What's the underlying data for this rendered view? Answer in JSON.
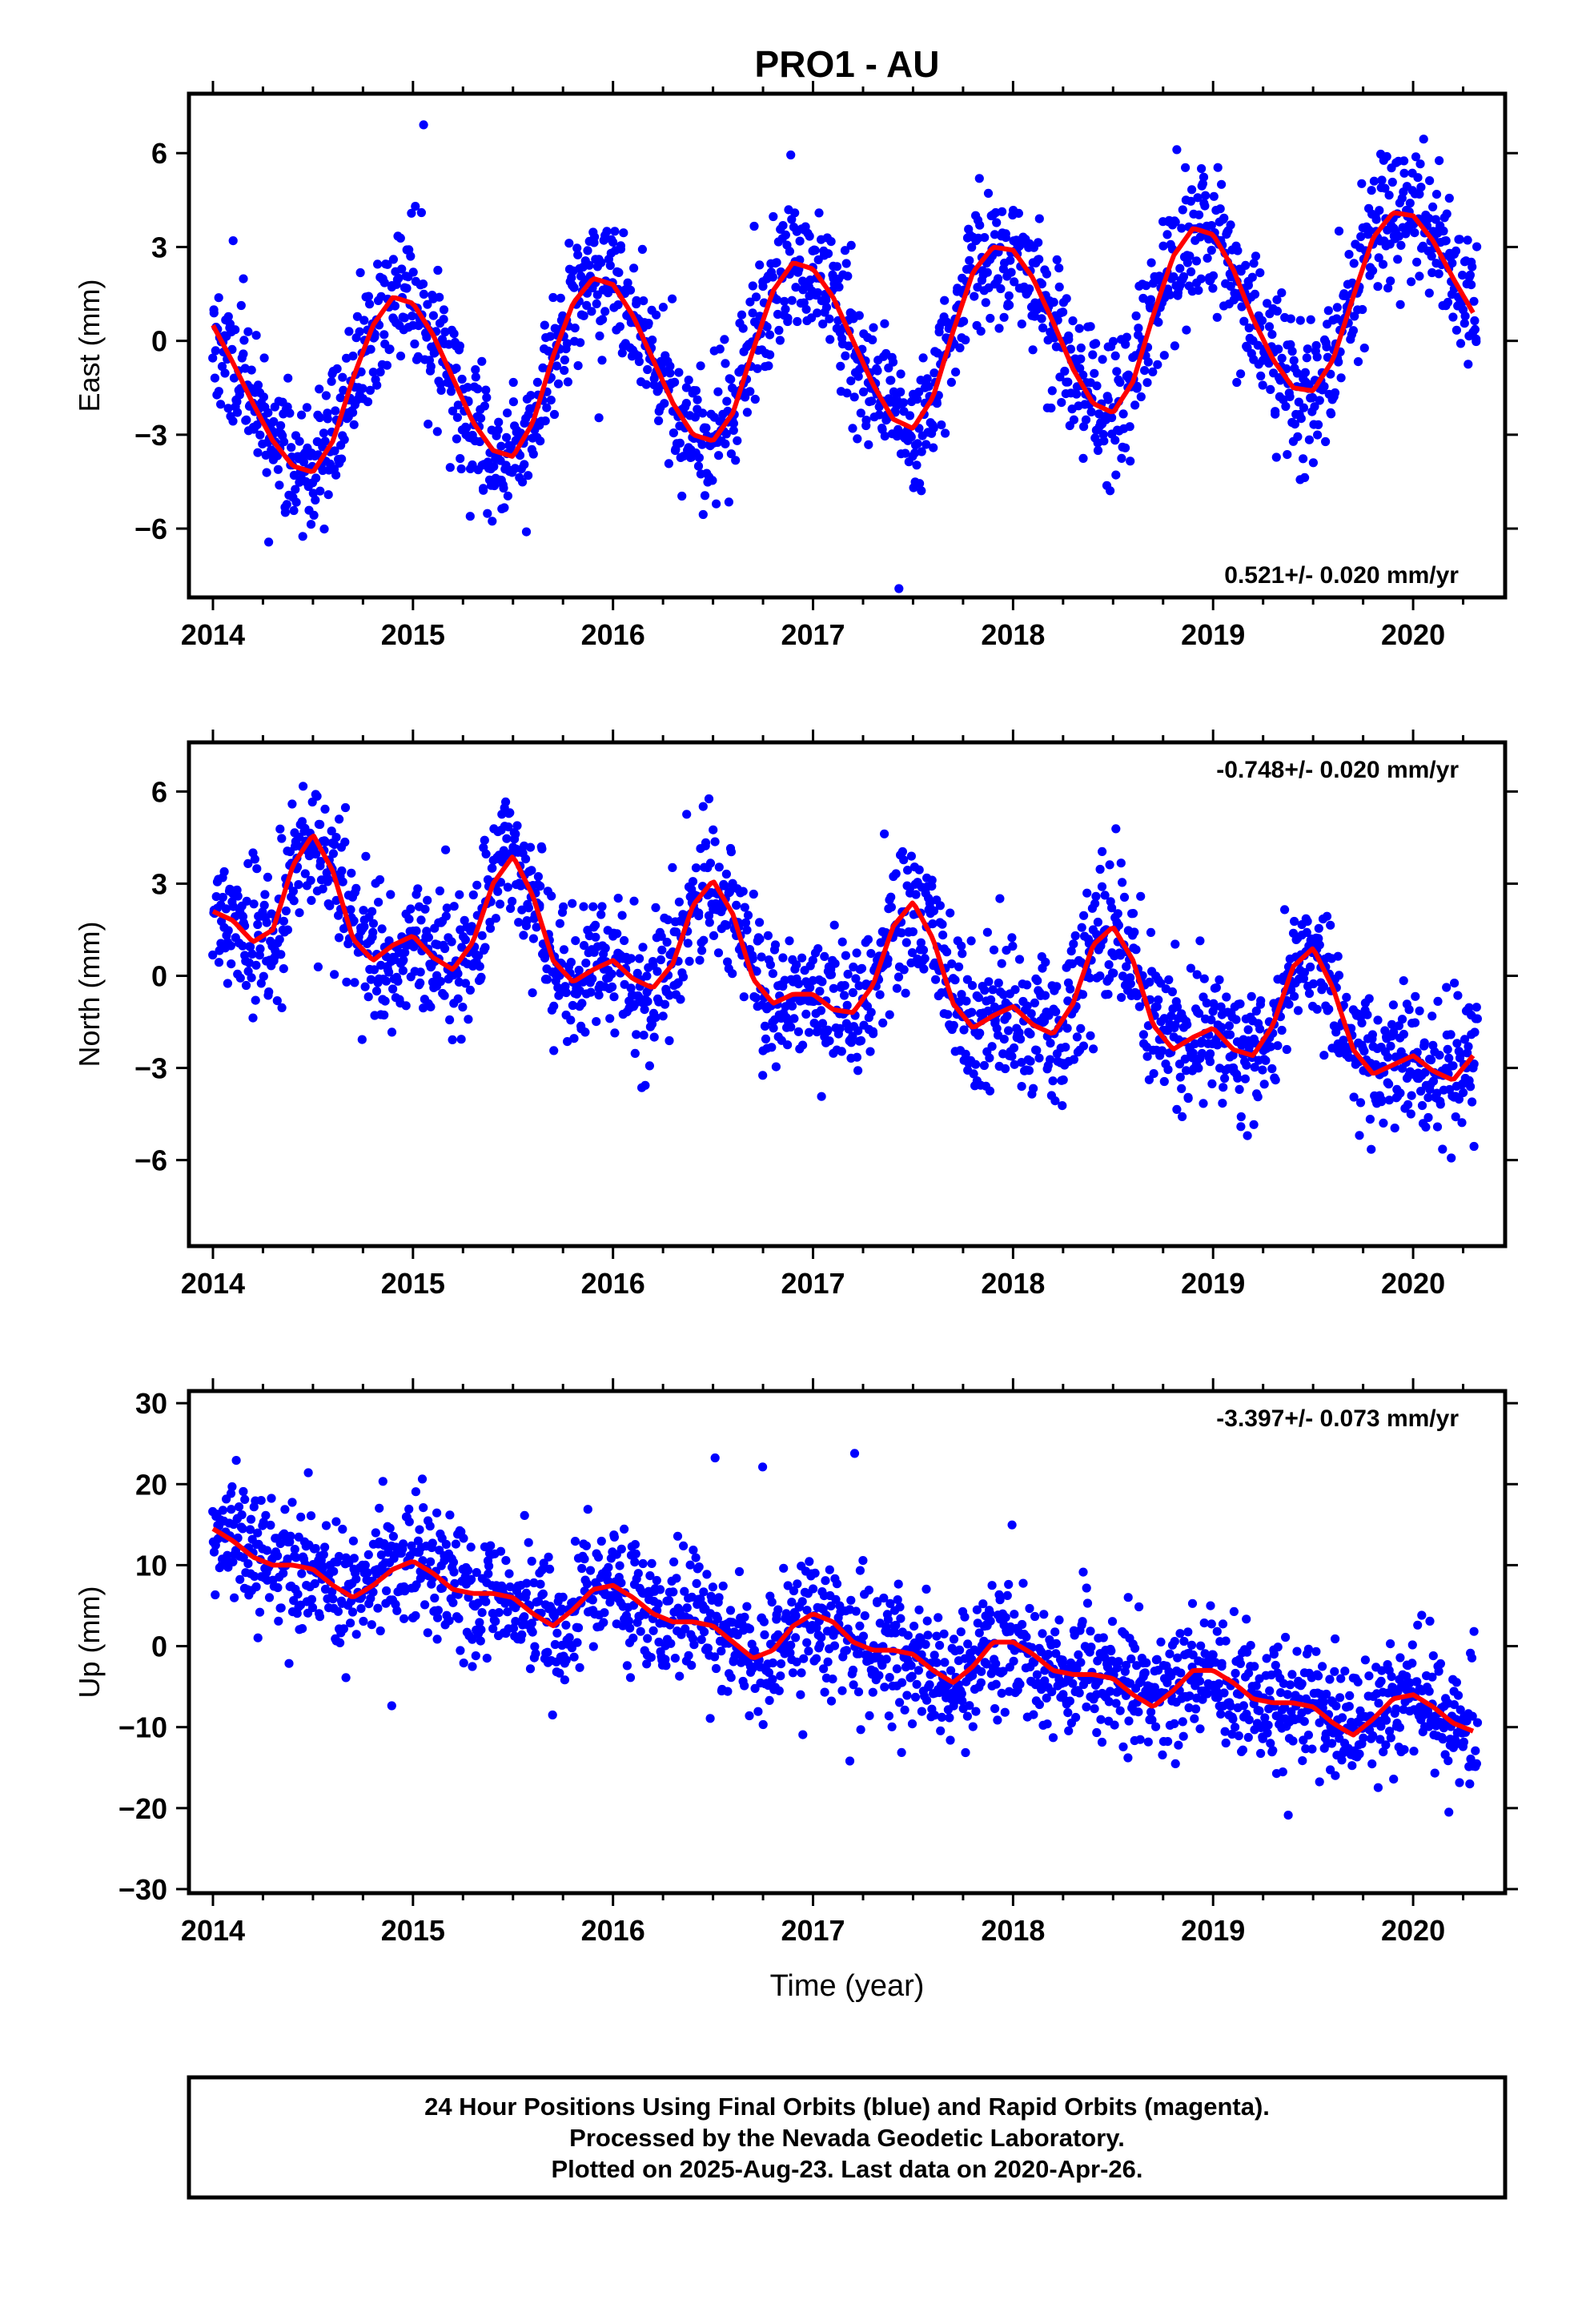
{
  "title": "PRO1 - AU",
  "xlabel": "Time (year)",
  "caption": {
    "line1": "24 Hour Positions Using Final Orbits (blue) and Rapid Orbits (magenta).",
    "line2": "Processed by the Nevada Geodetic Laboratory.",
    "line3": "Plotted on 2025-Aug-23. Last data on 2020-Apr-26."
  },
  "colors": {
    "points": "#0000ff",
    "fit": "#ff0000",
    "axes": "#000000",
    "background": "#ffffff"
  },
  "chart_data": [
    {
      "type": "scatter",
      "component": "east",
      "ylabel": "East (mm)",
      "rate_text": "0.521+/- 0.020 mm/yr",
      "rate_position": "bottom-right",
      "xlim": [
        2013.88,
        2020.46
      ],
      "ylim": [
        -8.2,
        7.9
      ],
      "x_ticks": [
        2014,
        2015,
        2016,
        2017,
        2018,
        2019,
        2020
      ],
      "y_ticks": [
        -6,
        -3,
        0,
        3,
        6
      ],
      "y_tick_labels": [
        "−6",
        "−3",
        "0",
        "3",
        "6"
      ],
      "grid": false,
      "series": [
        {
          "role": "fit",
          "x": [
            2014.0,
            2014.1,
            2014.2,
            2014.3,
            2014.4,
            2014.5,
            2014.6,
            2014.7,
            2014.8,
            2014.9,
            2015.0,
            2015.1,
            2015.2,
            2015.3,
            2015.4,
            2015.5,
            2015.6,
            2015.7,
            2015.8,
            2015.9,
            2016.0,
            2016.1,
            2016.2,
            2016.3,
            2016.4,
            2016.5,
            2016.6,
            2016.7,
            2016.8,
            2016.9,
            2017.0,
            2017.1,
            2017.2,
            2017.3,
            2017.4,
            2017.5,
            2017.6,
            2017.7,
            2017.8,
            2017.9,
            2018.0,
            2018.1,
            2018.2,
            2018.3,
            2018.4,
            2018.5,
            2018.6,
            2018.7,
            2018.8,
            2018.9,
            2019.0,
            2019.1,
            2019.2,
            2019.3,
            2019.4,
            2019.5,
            2019.6,
            2019.7,
            2019.8,
            2019.9,
            2020.0,
            2020.1,
            2020.2,
            2020.3
          ],
          "y": [
            0.5,
            -0.7,
            -2.0,
            -3.2,
            -4.0,
            -4.2,
            -3.2,
            -1.2,
            0.5,
            1.4,
            1.2,
            0.2,
            -1.2,
            -2.6,
            -3.5,
            -3.7,
            -2.6,
            -0.5,
            1.2,
            2.0,
            1.8,
            0.8,
            -0.6,
            -2.0,
            -3.0,
            -3.2,
            -2.3,
            -0.3,
            1.6,
            2.5,
            2.3,
            1.4,
            0.0,
            -1.4,
            -2.5,
            -2.8,
            -1.8,
            0.3,
            2.2,
            3.0,
            2.9,
            2.0,
            0.6,
            -0.9,
            -2.0,
            -2.3,
            -1.3,
            0.8,
            2.7,
            3.6,
            3.4,
            2.3,
            0.7,
            -0.6,
            -1.5,
            -1.6,
            -0.6,
            1.4,
            3.3,
            4.1,
            4.0,
            3.2,
            2.0,
            0.9
          ]
        }
      ],
      "scatter_model": {
        "samples": 1850,
        "x_start": 2014.0,
        "x_end": 2020.32,
        "noise_sd_mm": 1.1,
        "seed": 11
      }
    },
    {
      "type": "scatter",
      "component": "north",
      "ylabel": "North (mm)",
      "rate_text": "-0.748+/- 0.020 mm/yr",
      "rate_position": "top-right",
      "xlim": [
        2013.88,
        2020.46
      ],
      "ylim": [
        -8.8,
        7.6
      ],
      "x_ticks": [
        2014,
        2015,
        2016,
        2017,
        2018,
        2019,
        2020
      ],
      "y_ticks": [
        -6,
        -3,
        0,
        3,
        6
      ],
      "y_tick_labels": [
        "−6",
        "−3",
        "0",
        "3",
        "6"
      ],
      "grid": false,
      "series": [
        {
          "role": "fit",
          "x": [
            2014.0,
            2014.1,
            2014.2,
            2014.3,
            2014.4,
            2014.5,
            2014.6,
            2014.7,
            2014.8,
            2014.9,
            2015.0,
            2015.1,
            2015.2,
            2015.3,
            2015.4,
            2015.5,
            2015.6,
            2015.7,
            2015.8,
            2015.9,
            2016.0,
            2016.1,
            2016.2,
            2016.3,
            2016.4,
            2016.5,
            2016.6,
            2016.7,
            2016.8,
            2016.9,
            2017.0,
            2017.1,
            2017.2,
            2017.3,
            2017.4,
            2017.5,
            2017.6,
            2017.7,
            2017.8,
            2017.9,
            2018.0,
            2018.1,
            2018.2,
            2018.3,
            2018.4,
            2018.5,
            2018.6,
            2018.7,
            2018.8,
            2018.9,
            2019.0,
            2019.1,
            2019.2,
            2019.3,
            2019.4,
            2019.5,
            2019.6,
            2019.7,
            2019.8,
            2019.9,
            2020.0,
            2020.1,
            2020.2,
            2020.3
          ],
          "y": [
            2.1,
            1.8,
            1.1,
            1.5,
            3.6,
            4.6,
            3.4,
            1.2,
            0.5,
            1.0,
            1.3,
            0.6,
            0.2,
            1.1,
            3.0,
            3.9,
            2.6,
            0.5,
            -0.2,
            0.2,
            0.5,
            -0.1,
            -0.4,
            0.4,
            2.3,
            3.1,
            2.0,
            -0.1,
            -0.9,
            -0.6,
            -0.6,
            -1.1,
            -1.2,
            -0.3,
            1.6,
            2.4,
            1.2,
            -0.9,
            -1.7,
            -1.3,
            -1.0,
            -1.6,
            -1.9,
            -0.9,
            1.0,
            1.6,
            0.5,
            -1.6,
            -2.4,
            -2.0,
            -1.7,
            -2.4,
            -2.6,
            -1.6,
            0.3,
            0.9,
            -0.4,
            -2.4,
            -3.2,
            -2.9,
            -2.6,
            -3.1,
            -3.4,
            -2.6
          ]
        }
      ],
      "scatter_model": {
        "samples": 1850,
        "x_start": 2014.0,
        "x_end": 2020.32,
        "noise_sd_mm": 1.1,
        "seed": 23
      }
    },
    {
      "type": "scatter",
      "component": "up",
      "ylabel": "Up (mm)",
      "rate_text": "-3.397+/- 0.073 mm/yr",
      "rate_position": "top-right",
      "xlim": [
        2013.88,
        2020.46
      ],
      "ylim": [
        -30.5,
        31.5
      ],
      "x_ticks": [
        2014,
        2015,
        2016,
        2017,
        2018,
        2019,
        2020
      ],
      "y_ticks": [
        -30,
        -20,
        -10,
        0,
        10,
        20,
        30
      ],
      "y_tick_labels": [
        "−30",
        "−20",
        "−10",
        "0",
        "10",
        "20",
        "30"
      ],
      "grid": false,
      "series": [
        {
          "role": "fit",
          "x": [
            2014.0,
            2014.1,
            2014.2,
            2014.3,
            2014.4,
            2014.5,
            2014.6,
            2014.7,
            2014.8,
            2014.9,
            2015.0,
            2015.1,
            2015.2,
            2015.3,
            2015.4,
            2015.5,
            2015.6,
            2015.7,
            2015.8,
            2015.9,
            2016.0,
            2016.1,
            2016.2,
            2016.3,
            2016.4,
            2016.5,
            2016.6,
            2016.7,
            2016.8,
            2016.9,
            2017.0,
            2017.1,
            2017.2,
            2017.3,
            2017.4,
            2017.5,
            2017.6,
            2017.7,
            2017.8,
            2017.9,
            2018.0,
            2018.1,
            2018.2,
            2018.3,
            2018.4,
            2018.5,
            2018.6,
            2018.7,
            2018.8,
            2018.9,
            2019.0,
            2019.1,
            2019.2,
            2019.3,
            2019.4,
            2019.5,
            2019.6,
            2019.7,
            2019.8,
            2019.9,
            2020.0,
            2020.1,
            2020.2,
            2020.3
          ],
          "y": [
            14.5,
            13.0,
            11.0,
            10.0,
            10.0,
            9.5,
            7.5,
            6.0,
            7.5,
            9.5,
            10.5,
            9.0,
            7.0,
            6.5,
            6.5,
            6.0,
            4.0,
            2.5,
            4.5,
            7.0,
            7.5,
            6.0,
            4.0,
            3.0,
            3.0,
            2.5,
            0.5,
            -1.5,
            -0.5,
            2.5,
            4.0,
            3.0,
            0.5,
            -0.5,
            -0.5,
            -1.0,
            -3.0,
            -4.5,
            -2.5,
            0.5,
            0.5,
            -1.0,
            -3.0,
            -3.5,
            -3.5,
            -4.0,
            -6.0,
            -7.5,
            -5.5,
            -3.0,
            -3.0,
            -4.5,
            -6.5,
            -7.0,
            -7.0,
            -7.5,
            -9.5,
            -11.0,
            -9.0,
            -6.5,
            -6.0,
            -7.5,
            -9.5,
            -10.5
          ]
        }
      ],
      "scatter_model": {
        "samples": 1850,
        "x_start": 2014.0,
        "x_end": 2020.32,
        "noise_sd_mm": 3.9,
        "seed": 37
      }
    }
  ]
}
